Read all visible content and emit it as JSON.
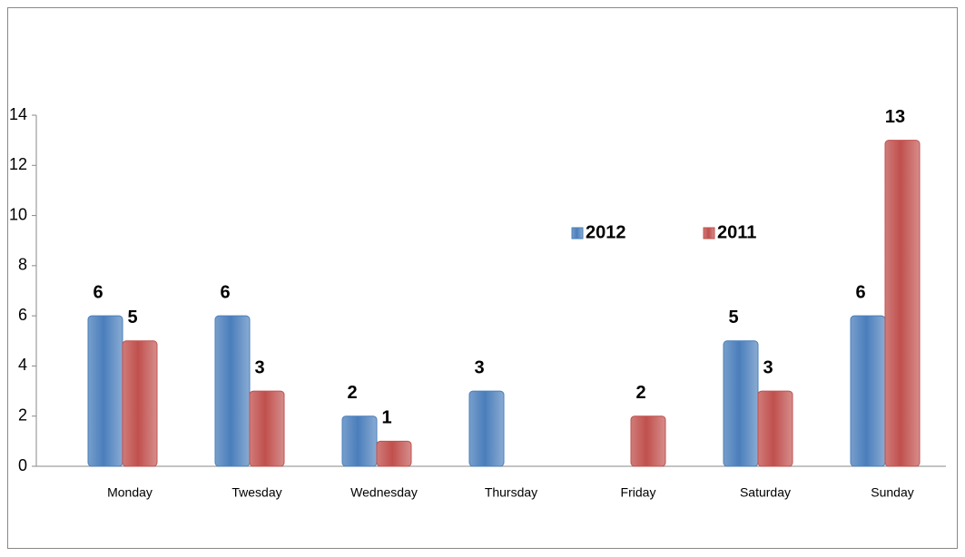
{
  "chart_data": {
    "type": "bar",
    "categories": [
      "Monday",
      "Twesday",
      "Wednesday",
      "Thursday",
      "Friday",
      "Saturday",
      "Sunday"
    ],
    "series": [
      {
        "name": "2012",
        "color": "#4a7ebb",
        "values": [
          6,
          6,
          2,
          3,
          null,
          5,
          6
        ]
      },
      {
        "name": "2011",
        "color": "#c0504d",
        "values": [
          5,
          3,
          1,
          null,
          2,
          3,
          13
        ]
      }
    ],
    "ylim": [
      0,
      14
    ],
    "yticks": [
      0,
      2,
      4,
      6,
      8,
      10,
      12,
      14
    ],
    "grid": false,
    "legend": "center"
  }
}
